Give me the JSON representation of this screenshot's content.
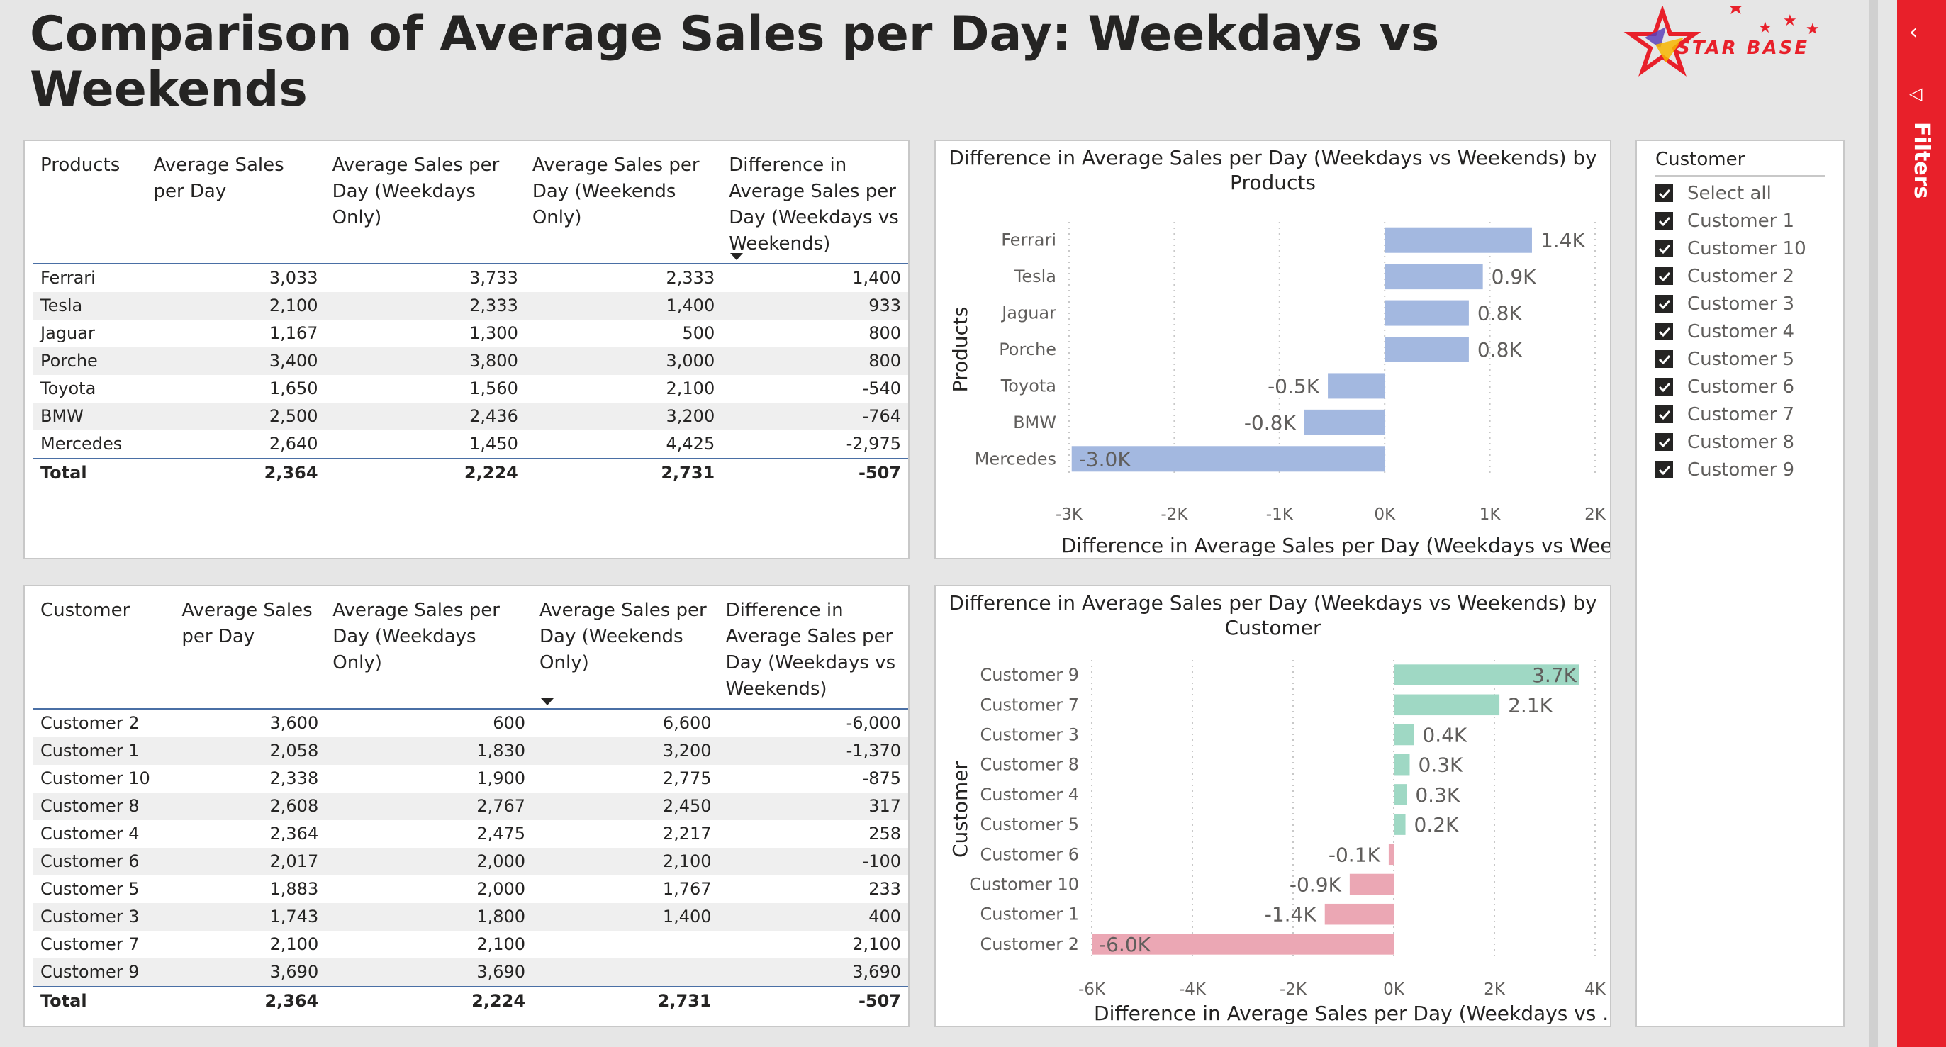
{
  "report_title": "Comparison of Average Sales per Day: Weekdays vs Weekends",
  "logo_text": "STAR BASE",
  "filters_label": "Filters",
  "products_table": {
    "headers": [
      "Products",
      "Average Sales per Day",
      "Average Sales per Day (Weekdays Only)",
      "Average Sales per Day (Weekends Only)",
      "Difference in Average Sales per Day (Weekdays vs Weekends)"
    ],
    "rows": [
      [
        "Ferrari",
        "3,033",
        "3,733",
        "2,333",
        "1,400"
      ],
      [
        "Tesla",
        "2,100",
        "2,333",
        "1,400",
        "933"
      ],
      [
        "Jaguar",
        "1,167",
        "1,300",
        "500",
        "800"
      ],
      [
        "Porche",
        "3,400",
        "3,800",
        "3,000",
        "800"
      ],
      [
        "Toyota",
        "1,650",
        "1,560",
        "2,100",
        "-540"
      ],
      [
        "BMW",
        "2,500",
        "2,436",
        "3,200",
        "-764"
      ],
      [
        "Mercedes",
        "2,640",
        "1,450",
        "4,425",
        "-2,975"
      ]
    ],
    "total": [
      "Total",
      "2,364",
      "2,224",
      "2,731",
      "-507"
    ]
  },
  "customer_table": {
    "headers": [
      "Customer",
      "Average Sales per Day",
      "Average Sales per Day (Weekdays Only)",
      "Average Sales per Day (Weekends Only)",
      "Difference in Average Sales per Day (Weekdays vs Weekends)"
    ],
    "rows": [
      [
        "Customer 2",
        "3,600",
        "600",
        "6,600",
        "-6,000"
      ],
      [
        "Customer 1",
        "2,058",
        "1,830",
        "3,200",
        "-1,370"
      ],
      [
        "Customer 10",
        "2,338",
        "1,900",
        "2,775",
        "-875"
      ],
      [
        "Customer 8",
        "2,608",
        "2,767",
        "2,450",
        "317"
      ],
      [
        "Customer 4",
        "2,364",
        "2,475",
        "2,217",
        "258"
      ],
      [
        "Customer 6",
        "2,017",
        "2,000",
        "2,100",
        "-100"
      ],
      [
        "Customer 5",
        "1,883",
        "2,000",
        "1,767",
        "233"
      ],
      [
        "Customer 3",
        "1,743",
        "1,800",
        "1,400",
        "400"
      ],
      [
        "Customer 7",
        "2,100",
        "2,100",
        "",
        "2,100"
      ],
      [
        "Customer 9",
        "3,690",
        "3,690",
        "",
        "3,690"
      ]
    ],
    "total": [
      "Total",
      "2,364",
      "2,224",
      "2,731",
      "-507"
    ]
  },
  "chart_data": [
    {
      "type": "bar",
      "orientation": "horizontal",
      "title": "Difference in Average Sales per Day (Weekdays vs Weekends) by Products",
      "xlabel": "Difference in Average Sales per Day (Weekdays vs Wee...",
      "ylabel": "Products",
      "categories": [
        "Ferrari",
        "Tesla",
        "Jaguar",
        "Porche",
        "Toyota",
        "BMW",
        "Mercedes"
      ],
      "values": [
        1400,
        933,
        800,
        800,
        -540,
        -764,
        -2975
      ],
      "data_labels": [
        "1.4K",
        "0.9K",
        "0.8K",
        "0.8K",
        "-0.5K",
        "-0.8K",
        "-3.0K"
      ],
      "xlim": [
        -3000,
        2000
      ],
      "xticks": [
        -3000,
        -2000,
        -1000,
        0,
        1000,
        2000
      ],
      "xtick_labels": [
        "-3K",
        "-2K",
        "-1K",
        "0K",
        "1K",
        "2K"
      ],
      "bar_color": "#a3b8e0",
      "grid": true
    },
    {
      "type": "bar",
      "orientation": "horizontal",
      "title": "Difference in Average Sales per Day (Weekdays vs Weekends) by Customer",
      "xlabel": "Difference in Average Sales per Day (Weekdays vs ...",
      "ylabel": "Customer",
      "categories": [
        "Customer 9",
        "Customer 7",
        "Customer 3",
        "Customer 8",
        "Customer 4",
        "Customer 5",
        "Customer 6",
        "Customer 10",
        "Customer 1",
        "Customer 2"
      ],
      "values": [
        3690,
        2100,
        400,
        317,
        258,
        233,
        -100,
        -875,
        -1370,
        -6000
      ],
      "data_labels": [
        "3.7K",
        "2.1K",
        "0.4K",
        "0.3K",
        "0.3K",
        "0.2K",
        "-0.1K",
        "-0.9K",
        "-1.4K",
        "-6.0K"
      ],
      "xlim": [
        -6000,
        4000
      ],
      "xticks": [
        -6000,
        -4000,
        -2000,
        0,
        2000,
        4000
      ],
      "xtick_labels": [
        "-6K",
        "-4K",
        "-2K",
        "0K",
        "2K",
        "4K"
      ],
      "positive_color": "#9fd8c4",
      "negative_color": "#eba7b4",
      "grid": true
    }
  ],
  "slicer": {
    "title": "Customer",
    "items": [
      "Select all",
      "Customer 1",
      "Customer 10",
      "Customer 2",
      "Customer 3",
      "Customer 4",
      "Customer 5",
      "Customer 6",
      "Customer 7",
      "Customer 8",
      "Customer 9"
    ],
    "all_checked": true
  }
}
